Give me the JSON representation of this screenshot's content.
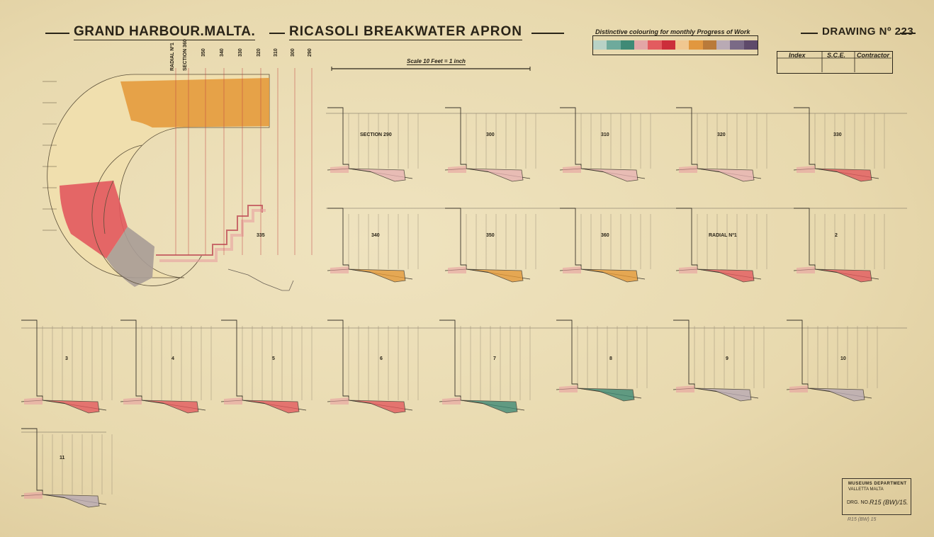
{
  "title": {
    "main": "GRAND HARBOUR.MALTA.",
    "sub": "RICASOLI BREAKWATER APRON",
    "drawing_no": "DRAWING Nº 223"
  },
  "legend": {
    "heading": "Distinctive colouring for monthly Progress of Work",
    "swatches": [
      "#b8d2c6",
      "#6eaa9c",
      "#3f8a76",
      "#e3a6a6",
      "#e35b5f",
      "#cc2e3a",
      "#f0c790",
      "#e1973f",
      "#b97a3a",
      "#b9aab4",
      "#7a6a86",
      "#5e4a6a"
    ]
  },
  "scale": {
    "label": "Scale 10 Feet = 1 inch"
  },
  "index_table": {
    "headers": [
      "Index",
      "S.C.E.",
      "Contractor"
    ]
  },
  "plan": {
    "radial_labels": [
      "RADIAL Nº1",
      "SECTION 360",
      "350",
      "340",
      "330",
      "320",
      "310",
      "300",
      "290"
    ],
    "sections_labels": [
      "335"
    ]
  },
  "sections": {
    "row1": [
      "SECTION 290",
      "300",
      "310",
      "320",
      "330"
    ],
    "row2": [
      "340",
      "350",
      "360",
      "RADIAL Nº1",
      "2"
    ],
    "row3": [
      "3",
      "4",
      "5",
      "6",
      "7",
      "8",
      "9",
      "10"
    ],
    "row4": [
      "11"
    ]
  },
  "stamp": {
    "line1": "MUSEUMS DEPARTMENT",
    "line2": "VALLETTA          MALTA",
    "line3": "DRG. NO.",
    "ref": "R15 (BW)/15."
  },
  "pencil_ref": "R15 (BW) 15"
}
